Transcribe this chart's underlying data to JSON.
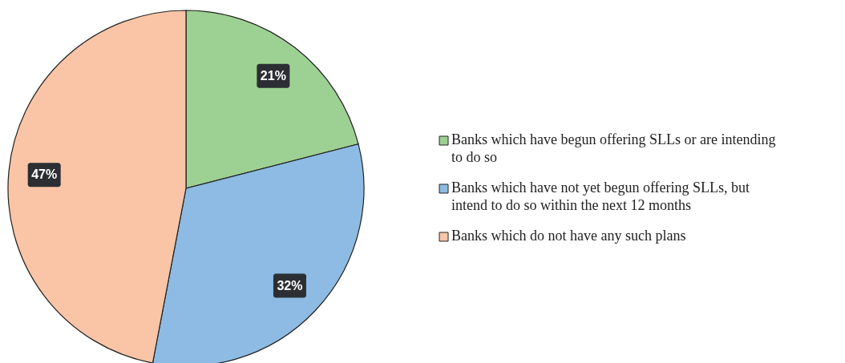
{
  "chart_data": {
    "type": "pie",
    "categories": [
      "Banks which have begun offering SLLs or are intending to do so",
      "Banks which have not yet begun offering SLLs, but intend to do so  within the next 12 months",
      "Banks which do not have any such plans"
    ],
    "values": [
      21,
      32,
      47
    ],
    "colors": [
      "#9dd193",
      "#8dbbe3",
      "#f9c5a6"
    ],
    "value_labels": [
      "21%",
      "32%",
      "47%"
    ],
    "legend": "right"
  }
}
